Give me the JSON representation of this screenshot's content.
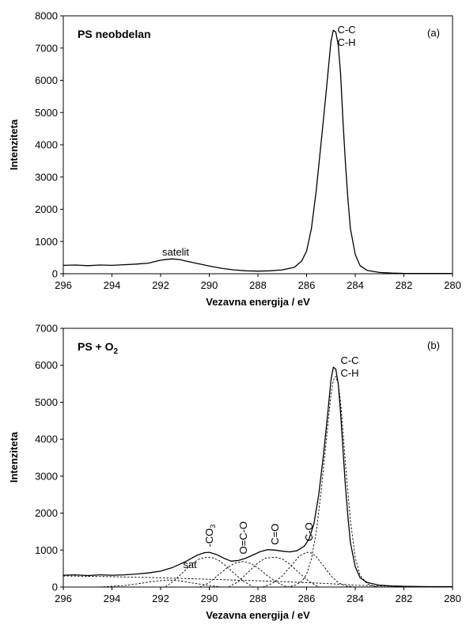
{
  "chart_data": [
    {
      "type": "line",
      "panel_label": "(a)",
      "sample_title": "PS neobdelan",
      "xlabel": "Vezavna energija / eV",
      "ylabel": "Intenziteta",
      "xlim": [
        296,
        280
      ],
      "ylim": [
        0,
        8000
      ],
      "x_axis_reversed": true,
      "xticks": [
        "296",
        "294",
        "292",
        "290",
        "288",
        "286",
        "284",
        "282",
        "280"
      ],
      "yticks": [
        "0",
        "1000",
        "2000",
        "3000",
        "4000",
        "5000",
        "6000",
        "7000",
        "8000"
      ],
      "peak_labels": [
        "C-C",
        "C-H"
      ],
      "satellite_label": "satelit",
      "series": [
        {
          "style": "solid",
          "x": [
            296,
            295.5,
            295,
            294.5,
            294,
            293.5,
            293,
            292.5,
            292,
            291.7,
            291.5,
            291.2,
            291,
            290.5,
            290,
            289.5,
            289,
            288.5,
            288,
            287.5,
            287,
            286.5,
            286.2,
            286,
            285.8,
            285.6,
            285.4,
            285.2,
            285.1,
            285.0,
            284.9,
            284.8,
            284.7,
            284.6,
            284.5,
            284.4,
            284.3,
            284.2,
            284.0,
            283.8,
            283.5,
            283,
            282.5,
            282,
            281,
            280
          ],
          "y": [
            260,
            270,
            250,
            270,
            260,
            280,
            300,
            330,
            420,
            450,
            460,
            440,
            400,
            320,
            240,
            170,
            120,
            90,
            80,
            90,
            120,
            200,
            400,
            700,
            1400,
            2600,
            4100,
            5600,
            6400,
            7200,
            7550,
            7500,
            7100,
            6200,
            4700,
            3400,
            2300,
            1400,
            600,
            250,
            100,
            40,
            20,
            10,
            10,
            10
          ]
        }
      ]
    },
    {
      "type": "line",
      "panel_label": "(b)",
      "sample_title": "PS + O",
      "sample_title_sub": "2",
      "xlabel": "Vezavna energija / eV",
      "ylabel": "Intenziteta",
      "xlim": [
        296,
        280
      ],
      "ylim": [
        0,
        7000
      ],
      "x_axis_reversed": true,
      "xticks": [
        "296",
        "294",
        "292",
        "290",
        "288",
        "286",
        "284",
        "282",
        "280"
      ],
      "yticks": [
        "0",
        "1000",
        "2000",
        "3000",
        "4000",
        "5000",
        "6000",
        "7000"
      ],
      "peak_labels": [
        "C-C",
        "C-H"
      ],
      "component_labels": [
        {
          "text": "-CO",
          "sub": "3",
          "x": 290.0,
          "y": 950
        },
        {
          "text": "O=C-O",
          "sub": "",
          "x": 288.6,
          "y": 760
        },
        {
          "text": "C=O",
          "sub": "",
          "x": 287.3,
          "y": 1010
        },
        {
          "text": "C-O",
          "sub": "",
          "x": 285.9,
          "y": 1110
        }
      ],
      "satellite_label": "sat",
      "series": [
        {
          "style": "solid",
          "x": [
            296,
            295.5,
            295,
            294.5,
            294,
            293.5,
            293,
            292.5,
            292,
            291.5,
            291,
            290.5,
            290.2,
            290,
            289.7,
            289.4,
            289.1,
            288.8,
            288.5,
            288.2,
            287.9,
            287.6,
            287.3,
            287.0,
            286.7,
            286.4,
            286.1,
            285.9,
            285.7,
            285.5,
            285.3,
            285.1,
            285.0,
            284.9,
            284.8,
            284.7,
            284.6,
            284.5,
            284.4,
            284.3,
            284.2,
            284.0,
            283.8,
            283.5,
            283,
            282.5,
            282,
            281,
            280
          ],
          "y": [
            320,
            330,
            310,
            330,
            320,
            330,
            350,
            380,
            430,
            530,
            680,
            860,
            930,
            940,
            880,
            780,
            700,
            720,
            780,
            870,
            960,
            1010,
            1000,
            970,
            950,
            980,
            1100,
            1300,
            1700,
            2500,
            3600,
            4900,
            5600,
            5950,
            5900,
            5500,
            4700,
            3700,
            2700,
            1900,
            1200,
            550,
            250,
            120,
            50,
            30,
            20,
            10,
            10
          ]
        },
        {
          "style": "dashed",
          "name_hint": "background",
          "x": [
            296,
            294,
            292,
            290,
            288,
            286,
            285,
            284.5,
            284,
            283,
            282,
            281,
            280
          ],
          "y": [
            300,
            280,
            250,
            210,
            170,
            120,
            90,
            70,
            50,
            30,
            20,
            10,
            10
          ]
        },
        {
          "style": "dashed",
          "name_hint": "C-C/C-H",
          "x": [
            286.8,
            286.5,
            286.2,
            286.0,
            285.8,
            285.6,
            285.4,
            285.2,
            285.0,
            284.9,
            284.8,
            284.7,
            284.6,
            284.5,
            284.4,
            284.2,
            284.0,
            283.8,
            283.5,
            283.2,
            283
          ],
          "y": [
            0,
            40,
            150,
            340,
            760,
            1500,
            2600,
            3900,
            5200,
            5600,
            5700,
            5500,
            5000,
            4200,
            3300,
            1800,
            800,
            320,
            80,
            20,
            0
          ]
        },
        {
          "style": "dashed",
          "name_hint": "C-O",
          "x": [
            287.8,
            287.4,
            287.0,
            286.6,
            286.3,
            286.0,
            285.8,
            285.6,
            285.3,
            285.0,
            284.7,
            284.4,
            284.0
          ],
          "y": [
            0,
            100,
            300,
            600,
            840,
            940,
            920,
            820,
            570,
            300,
            120,
            30,
            0
          ]
        },
        {
          "style": "dashed",
          "name_hint": "C=O",
          "x": [
            289.2,
            288.8,
            288.4,
            288.0,
            287.7,
            287.3,
            287.0,
            286.7,
            286.3,
            285.9,
            285.5
          ],
          "y": [
            0,
            150,
            400,
            650,
            780,
            810,
            760,
            620,
            380,
            150,
            0
          ]
        },
        {
          "style": "dashed",
          "name_hint": "O=C-O",
          "x": [
            290.4,
            290.0,
            289.6,
            289.2,
            288.9,
            288.6,
            288.3,
            288.0,
            287.6,
            287.2,
            286.8
          ],
          "y": [
            0,
            120,
            340,
            550,
            660,
            690,
            640,
            520,
            300,
            120,
            0
          ]
        },
        {
          "style": "dashed",
          "name_hint": "-CO3",
          "x": [
            291.8,
            291.4,
            291.0,
            290.7,
            290.4,
            290.1,
            289.9,
            289.6,
            289.3,
            289.0,
            288.6,
            288.2
          ],
          "y": [
            0,
            200,
            450,
            640,
            760,
            810,
            800,
            720,
            560,
            380,
            160,
            0
          ]
        },
        {
          "style": "dashed",
          "name_hint": "sat",
          "x": [
            294.5,
            293.5,
            292.8,
            292.2,
            291.7,
            291.2,
            290.7,
            290.0,
            289.5
          ],
          "y": [
            0,
            40,
            100,
            160,
            190,
            170,
            110,
            40,
            0
          ]
        }
      ]
    }
  ]
}
